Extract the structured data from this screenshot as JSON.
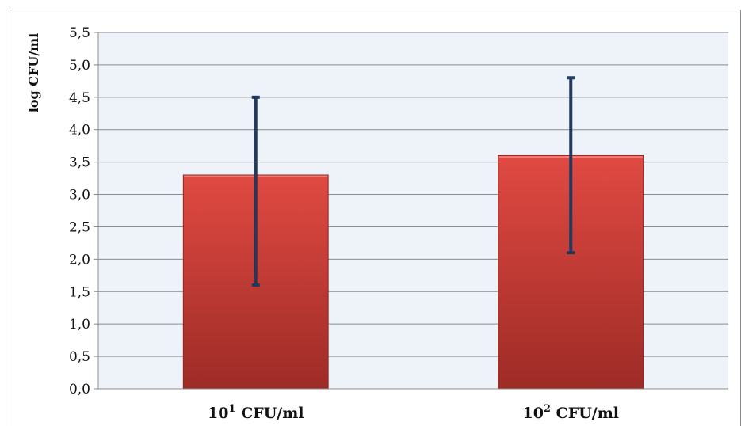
{
  "chart_data": {
    "type": "bar",
    "title": "",
    "ylabel": "log CFU/ml",
    "xlabel": "",
    "categories": [
      {
        "base": "10",
        "exp": "1",
        "unit": "CFU/ml"
      },
      {
        "base": "10",
        "exp": "2",
        "unit": "CFU/ml"
      }
    ],
    "values": [
      3.3,
      3.6
    ],
    "error_low": [
      1.6,
      2.1
    ],
    "error_high": [
      4.5,
      4.8
    ],
    "ylim": [
      0,
      5.5
    ],
    "yticks": [
      "0,0",
      "0,5",
      "1,0",
      "1,5",
      "2,0",
      "2,5",
      "3,0",
      "3,5",
      "4,0",
      "4,5",
      "5,0",
      "5,5"
    ],
    "grid": true,
    "legend": "none",
    "colors": {
      "bar_light": "#e04a42",
      "bar_dark": "#9e2b26",
      "error_bar": "#1f3a5c",
      "plot_bg": "#eef3fa",
      "gridline": "#8c8c8c"
    }
  }
}
